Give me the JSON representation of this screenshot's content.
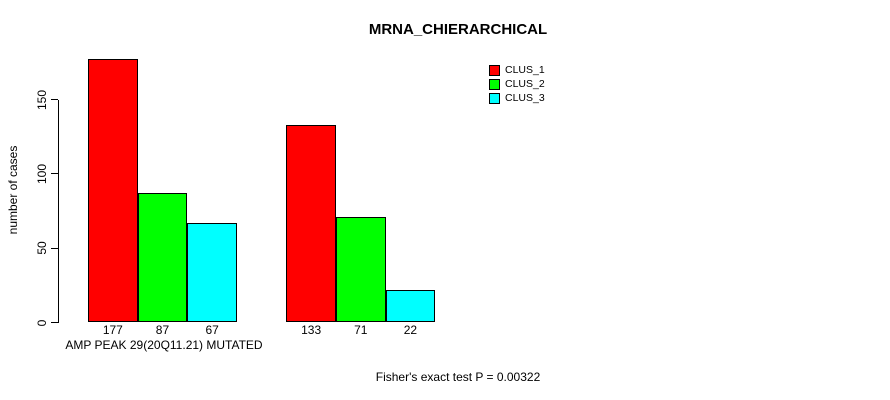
{
  "chart_data": {
    "type": "bar",
    "title": "MRNA_CHIERARCHICAL",
    "ylabel": "number of cases",
    "xlabel": "AMP PEAK 29(20Q11.21) MUTATED",
    "footer": "Fisher's exact test P = 0.00322",
    "categories": [
      "AMP PEAK 29(20Q11.21) MUTATED",
      ""
    ],
    "series": [
      {
        "name": "CLUS_1",
        "color": "#ff0000",
        "values": [
          177,
          133
        ]
      },
      {
        "name": "CLUS_2",
        "color": "#00ff00",
        "values": [
          87,
          71
        ]
      },
      {
        "name": "CLUS_3",
        "color": "#00ffff",
        "values": [
          67,
          22
        ]
      }
    ],
    "show_bar_values": true,
    "yticks": [
      0,
      50,
      100,
      150
    ],
    "ylim": [
      0,
      177
    ],
    "grid": false,
    "legend_position": "top-right",
    "colors": {
      "background": "#ffffff",
      "text": "#000000",
      "bar_border": "#000000"
    }
  }
}
